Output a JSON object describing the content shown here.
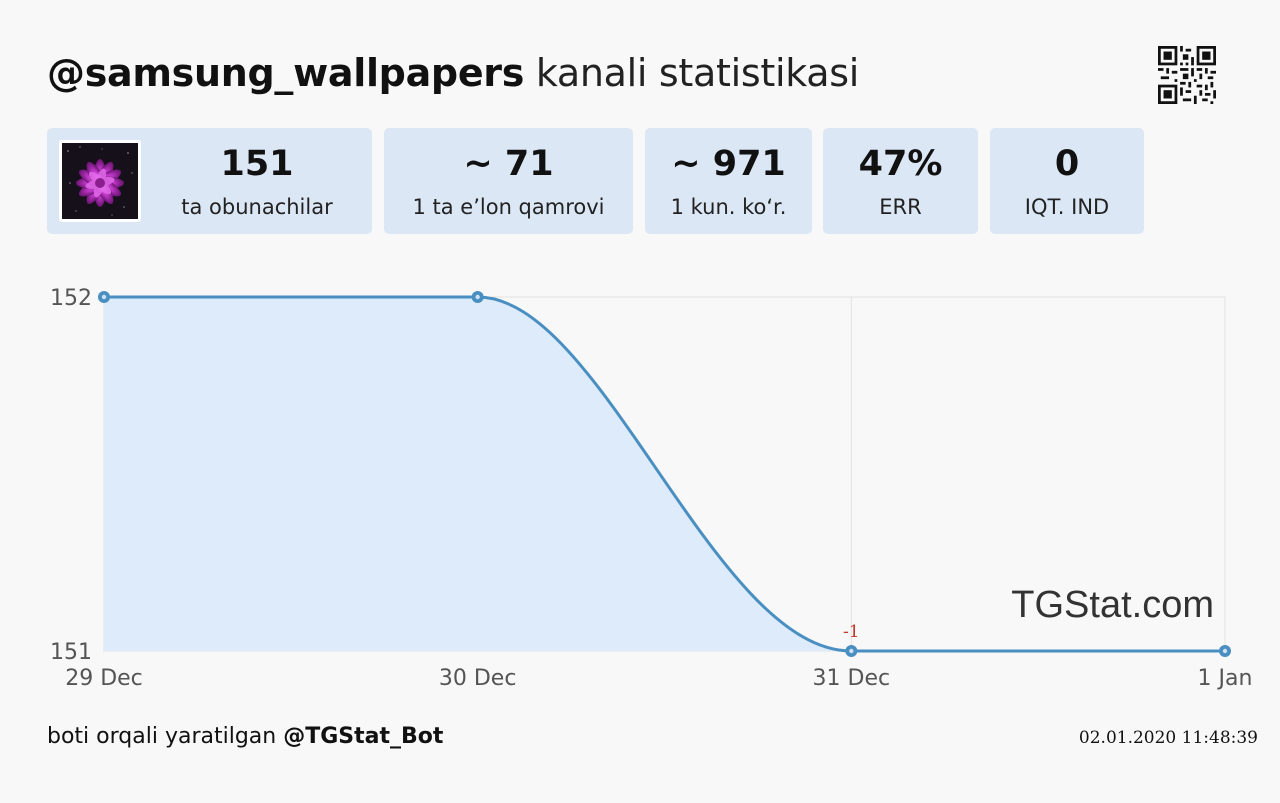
{
  "header": {
    "channel": "@samsung_wallpapers",
    "title_rest": "kanali statistikasi"
  },
  "stats": [
    {
      "value": "151",
      "label": "ta obunachilar"
    },
    {
      "value": "~ 71",
      "label": "1 ta e’lon qamrovi"
    },
    {
      "value": "~ 971",
      "label": "1 kun. ko‘r."
    },
    {
      "value": "47%",
      "label": "ERR"
    },
    {
      "value": "0",
      "label": "IQT. IND"
    }
  ],
  "chart_data": {
    "type": "area",
    "categories": [
      "29 Dec",
      "30 Dec",
      "31 Dec",
      "1 Jan"
    ],
    "series": [
      {
        "values": [
          152,
          152,
          151,
          151
        ]
      }
    ],
    "ylim": [
      151,
      152
    ],
    "yticks": [
      151,
      152
    ],
    "annotations": [
      {
        "x": "31 Dec",
        "text": "-1"
      }
    ],
    "watermark": "TGStat.com",
    "grid": true,
    "line_color": "#4a8fc1",
    "fill_color": "#deebfa"
  },
  "footer": {
    "created_text": "boti orqali yaratilgan",
    "bot": "@TGStat_Bot",
    "timestamp": "02.01.2020 11:48:39"
  },
  "icons": {
    "qr": "qr-code-icon",
    "avatar": "channel-avatar-flower"
  }
}
